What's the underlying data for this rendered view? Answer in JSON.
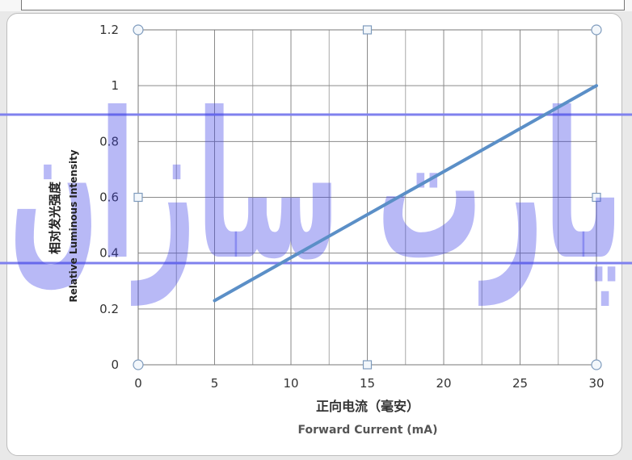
{
  "chart_data": {
    "type": "line",
    "title": "",
    "xlabel": "正向电流（毫安）",
    "xlabel_en": "Forward Current (mA)",
    "ylabel": "相对发光强度",
    "ylabel_en": "Relative Luminous Intensity",
    "xlim": [
      0,
      30
    ],
    "ylim": [
      0,
      1.2
    ],
    "xticks": [
      0,
      5,
      10,
      15,
      20,
      25,
      30
    ],
    "yticks": [
      0,
      0.2,
      0.4,
      0.6,
      0.8,
      1,
      1.2
    ],
    "x_minor_step": 2.5,
    "grid": true,
    "series": [
      {
        "x": [
          5,
          30
        ],
        "y": [
          0.23,
          1.0
        ],
        "color": "#5b8fc7"
      }
    ]
  },
  "watermark": {
    "text": "پارت سازان",
    "color": "#3b3ee6"
  }
}
